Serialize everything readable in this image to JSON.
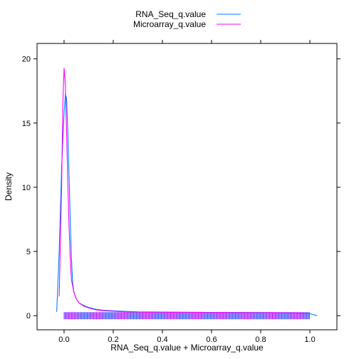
{
  "chart_data": {
    "type": "line",
    "title": "",
    "xlabel": "RNA_Seq_q.value + Microarray_q.value",
    "ylabel": "Density",
    "xlim": [
      -0.11,
      1.11
    ],
    "ylim": [
      -1.1,
      21.2
    ],
    "x_ticks": [
      0.0,
      0.2,
      0.4,
      0.6,
      0.8,
      1.0
    ],
    "x_tick_labels": [
      "0.0",
      "0.2",
      "0.4",
      "0.6",
      "0.8",
      "1.0"
    ],
    "y_ticks": [
      0,
      5,
      10,
      15,
      20
    ],
    "y_tick_labels": [
      "0",
      "5",
      "10",
      "15",
      "20"
    ],
    "legend_position": "top",
    "grid": false,
    "series": [
      {
        "name": "RNA_Seq_q.value",
        "color": "#0080ff",
        "x": [
          -0.03,
          -0.02,
          -0.01,
          0.0,
          0.005,
          0.01,
          0.015,
          0.02,
          0.025,
          0.03,
          0.035,
          0.04,
          0.05,
          0.06,
          0.08,
          0.1,
          0.13,
          0.16,
          0.2,
          0.25,
          0.3,
          0.4,
          0.5,
          0.6,
          0.7,
          0.8,
          0.9,
          0.95,
          1.0,
          1.03
        ],
        "y": [
          0.3,
          5.0,
          11.5,
          15.8,
          17.2,
          17.0,
          14.5,
          11.0,
          7.5,
          4.5,
          2.6,
          1.8,
          1.3,
          1.0,
          0.8,
          0.65,
          0.5,
          0.42,
          0.38,
          0.33,
          0.3,
          0.28,
          0.27,
          0.26,
          0.25,
          0.24,
          0.22,
          0.2,
          0.15,
          0.0
        ]
      },
      {
        "name": "Microarray_q.value",
        "color": "#ff00ff",
        "x": [
          -0.02,
          -0.01,
          -0.005,
          0.0,
          0.005,
          0.01,
          0.015,
          0.02,
          0.025,
          0.03,
          0.04,
          0.05,
          0.06,
          0.08,
          0.1,
          0.13,
          0.16,
          0.2,
          0.25,
          0.3,
          0.4,
          0.5,
          0.6,
          0.7,
          0.8,
          0.9,
          0.95,
          1.0
        ],
        "y": [
          1.5,
          10.0,
          16.5,
          19.3,
          18.0,
          14.5,
          10.5,
          7.0,
          4.5,
          2.8,
          1.8,
          1.3,
          1.0,
          0.75,
          0.6,
          0.45,
          0.38,
          0.35,
          0.3,
          0.28,
          0.27,
          0.26,
          0.25,
          0.24,
          0.23,
          0.22,
          0.2,
          0.15
        ]
      }
    ],
    "rug": {
      "y_value": 0.0,
      "x_min": 0.0,
      "x_max": 1.0,
      "colors": [
        "#0080ff",
        "#ff00ff"
      ]
    }
  }
}
